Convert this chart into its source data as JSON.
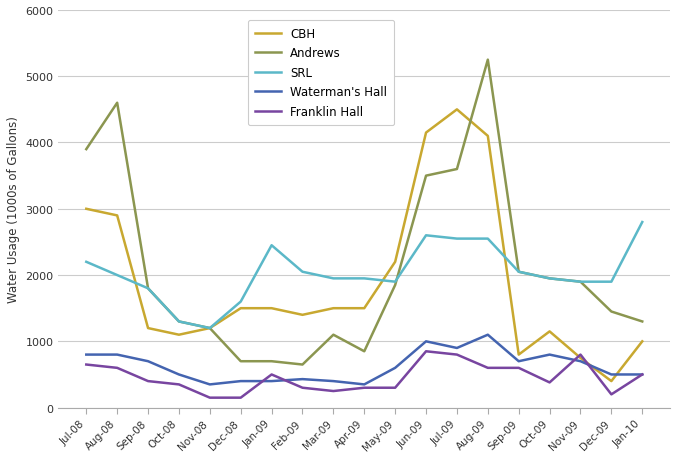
{
  "months": [
    "Jul-08",
    "Aug-08",
    "Sep-08",
    "Oct-08",
    "Nov-08",
    "Dec-08",
    "Jan-09",
    "Feb-09",
    "Mar-09",
    "Apr-09",
    "May-09",
    "Jun-09",
    "Jul-09",
    "Aug-09",
    "Sep-09",
    "Oct-09",
    "Nov-09",
    "Dec-09",
    "Jan-10"
  ],
  "CBH": [
    3000,
    2900,
    1200,
    1100,
    1200,
    1500,
    1500,
    1400,
    1500,
    1500,
    2200,
    4150,
    4500,
    4100,
    800,
    1150,
    750,
    400,
    1000
  ],
  "Andrews": [
    3900,
    4600,
    1800,
    1300,
    1200,
    700,
    700,
    650,
    1100,
    850,
    1850,
    3500,
    3600,
    5250,
    2050,
    1950,
    1900,
    1450,
    1300
  ],
  "SRL": [
    2200,
    2000,
    1800,
    1300,
    1200,
    1600,
    2450,
    2050,
    1950,
    1950,
    1900,
    2600,
    2550,
    2550,
    2050,
    1950,
    1900,
    1900,
    2800
  ],
  "Watermans_Hall": [
    800,
    800,
    700,
    500,
    350,
    400,
    400,
    430,
    400,
    350,
    600,
    1000,
    900,
    1100,
    700,
    800,
    700,
    500,
    500
  ],
  "Franklin_Hall": [
    650,
    600,
    400,
    350,
    150,
    150,
    500,
    300,
    250,
    300,
    300,
    850,
    800,
    600,
    600,
    380,
    800,
    200,
    500
  ],
  "CBH_color": "#C8A830",
  "Andrews_color": "#8B9650",
  "SRL_color": "#5BB8C8",
  "Watermans_color": "#4464B0",
  "Franklin_color": "#7845A0",
  "ylabel": "Water Usage (1000s of Gallons)",
  "ylim": [
    0,
    6000
  ],
  "yticks": [
    0,
    1000,
    2000,
    3000,
    4000,
    5000,
    6000
  ],
  "legend_labels": [
    "CBH",
    "Andrews",
    "SRL",
    "Waterman's Hall",
    "Franklin Hall"
  ],
  "figsize": [
    6.77,
    4.6
  ],
  "dpi": 100,
  "bg_color": "#ffffff"
}
